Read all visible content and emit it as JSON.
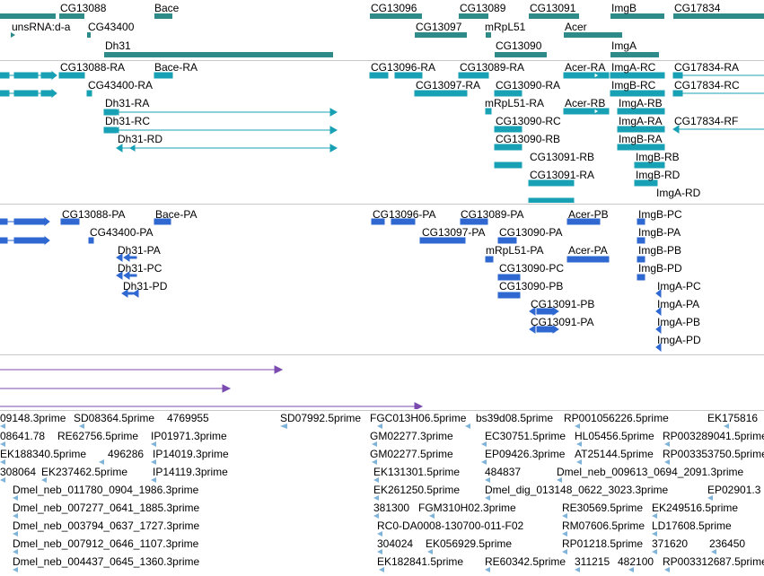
{
  "colors": {
    "gene": "#2f8a8a",
    "transcript": "#18a0b4",
    "protein": "#2e68d0",
    "match": "#7b4bb0",
    "est": "#7fb3d8",
    "divider": "#c8c8c8"
  },
  "tracks": {
    "genes": {
      "labels": [
        "CG13088",
        "Bace",
        "CG13096",
        "CG13089",
        "CG13091",
        "ImgB",
        "CG17834",
        "unsRNA:d-a",
        "CG43400",
        "CG13097",
        "mRpL51",
        "Acer",
        "Dh31",
        "CG13090",
        "ImgA"
      ]
    },
    "transcripts": {
      "labels": [
        "CG13088-RA",
        "Bace-RA",
        "CG13096-RA",
        "CG13089-RA",
        "Acer-RA",
        "ImgA-RC",
        "CG17834-RA",
        "CG43400-RA",
        "CG13097-RA",
        "CG13090-RA",
        "ImgB-RC",
        "CG17834-RC",
        "Dh31-RA",
        "mRpL51-RA",
        "Acer-RB",
        "ImgA-RB",
        "Dh31-RC",
        "CG13090-RC",
        "ImgA-RA",
        "CG17834-RF",
        "Dh31-RD",
        "CG13090-RB",
        "ImgB-RA",
        "CG13091-RB",
        "ImgB-RB",
        "CG13091-RA",
        "ImgB-RD",
        "ImgA-RD"
      ]
    },
    "proteins": {
      "labels": [
        "CG13088-PA",
        "Bace-PA",
        "CG13096-PA",
        "CG13089-PA",
        "Acer-PB",
        "ImgB-PC",
        "CG43400-PA",
        "CG13097-PA",
        "CG13090-PA",
        "ImgB-PA",
        "Dh31-PA",
        "mRpL51-PA",
        "Acer-PA",
        "ImgB-PB",
        "Dh31-PC",
        "CG13090-PC",
        "ImgB-PD",
        "Dh31-PD",
        "CG13090-PB",
        "ImgA-PC",
        "CG13091-PB",
        "ImgA-PA",
        "CG13091-PA",
        "ImgA-PB",
        "ImgA-PD"
      ]
    },
    "est": {
      "rows": [
        [
          "09148.3prime",
          "SD08364.5prime",
          "4769955",
          "SD07992.5prime",
          "FGC013H06.5prime",
          "bs39d08.5prime",
          "RP001056226.5prime",
          "EK175816"
        ],
        [
          "08641.78",
          "RE62756.5prime",
          "IP01971.3prime",
          "GM02277.3prime",
          "EC30751.5prime",
          "HL05456.5prime",
          "RP003289041.5prime"
        ],
        [
          "EK188340.5prime",
          "496286",
          "IP14019.3prime",
          "GM02277.5prime",
          "EP09426.3prime",
          "AT25144.5prime",
          "RP003353750.5prime"
        ],
        [
          "308064",
          "EK237462.5prime",
          "IP14119.3prime",
          "EK131301.5prime",
          "484837",
          "Dmel_neb_009613_0694_2091.3prime"
        ],
        [
          "Dmel_neb_011780_0904_1986.3prime",
          "EK261250.5prime",
          "Dmel_dig_013148_0622_3023.3prime",
          "EP02901.3"
        ],
        [
          "Dmel_neb_007277_0641_1885.3prime",
          "381300",
          "FGM310H02.3prime",
          "RE30569.5prime",
          "EK249516.5prime"
        ],
        [
          "Dmel_neb_003794_0637_1727.3prime",
          "RC0-DA0008-130700-011-F02",
          "RM07606.5prime",
          "LD17608.5prime"
        ],
        [
          "Dmel_neb_007912_0646_1107.3prime",
          "304024",
          "EK056929.5prime",
          "RP01218.5prime",
          "371620",
          "236450"
        ],
        [
          "Dmel_neb_004437_0645_1360.3prime",
          "EK182841.5prime",
          "RE60342.5prime",
          "311215",
          "482100",
          "RP003312687.5prime"
        ]
      ]
    }
  }
}
